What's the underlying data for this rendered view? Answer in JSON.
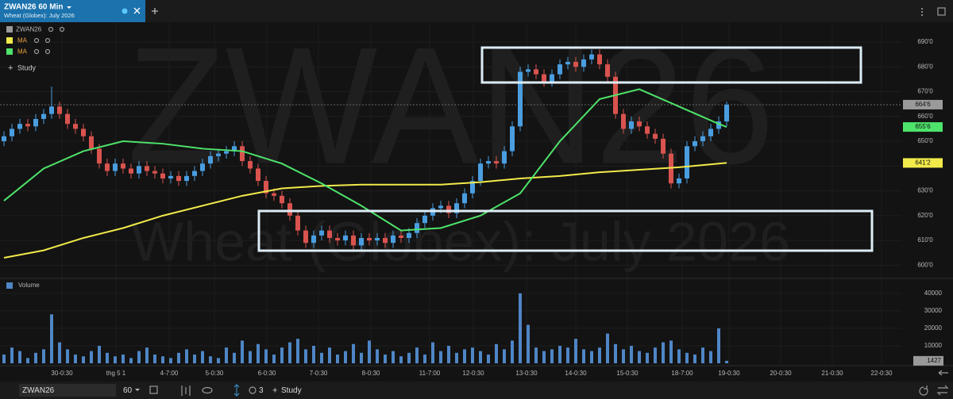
{
  "tab": {
    "title": "ZWAN26 60 Min",
    "subtitle": "Wheat (Globex): July 2026"
  },
  "watermark": {
    "symbol": "ZWAN26",
    "description": "Wheat (Globex): July 2026"
  },
  "study_button": "Study",
  "chart_data": {
    "type": "candlestick",
    "name": "ZWAN26",
    "up_color": "#4a9ee0",
    "down_color": "#d9534f",
    "open": [
      650,
      652,
      655,
      657,
      656,
      659,
      661,
      664,
      661,
      657,
      655,
      652,
      647,
      641,
      638,
      641,
      639,
      637,
      640,
      638,
      637,
      635,
      636,
      634,
      636,
      638,
      641,
      644,
      645,
      646,
      648,
      642,
      639,
      634,
      629,
      628,
      625,
      620,
      614,
      609,
      612,
      614,
      611,
      610,
      612,
      608,
      611,
      610,
      611,
      609,
      612,
      611,
      613,
      617,
      620,
      623,
      624,
      621,
      625,
      629,
      634,
      641,
      642,
      641,
      646,
      656,
      678,
      679,
      677,
      674,
      677,
      681,
      682,
      680,
      683,
      685,
      681,
      676,
      661,
      655,
      658,
      656,
      653,
      651,
      645,
      633,
      635,
      648,
      650,
      652,
      655,
      658
    ],
    "high": [
      654,
      657,
      659,
      659,
      661,
      663,
      672,
      666,
      663,
      659,
      657,
      654,
      649,
      643,
      643,
      643,
      641,
      642,
      642,
      640,
      639,
      638,
      638,
      638,
      640,
      643,
      646,
      647,
      648,
      650,
      650,
      644,
      641,
      636,
      631,
      630,
      627,
      622,
      616,
      614,
      616,
      616,
      613,
      614,
      614,
      613,
      613,
      613,
      613,
      614,
      614,
      615,
      619,
      622,
      625,
      626,
      626,
      627,
      631,
      636,
      643,
      644,
      644,
      648,
      658,
      680,
      681,
      681,
      679,
      679,
      683,
      684,
      684,
      685,
      687,
      687,
      683,
      678,
      663,
      660,
      660,
      658,
      655,
      653,
      647,
      637,
      650,
      652,
      654,
      657,
      660,
      666
    ],
    "low": [
      648,
      650,
      653,
      654,
      654,
      657,
      659,
      659,
      655,
      653,
      650,
      645,
      639,
      636,
      636,
      637,
      635,
      635,
      636,
      635,
      633,
      633,
      632,
      632,
      634,
      636,
      639,
      642,
      643,
      644,
      640,
      637,
      632,
      627,
      626,
      623,
      618,
      612,
      607,
      607,
      610,
      609,
      608,
      608,
      606,
      606,
      608,
      608,
      607,
      607,
      609,
      609,
      611,
      615,
      618,
      621,
      619,
      619,
      623,
      627,
      632,
      639,
      639,
      639,
      644,
      654,
      676,
      675,
      672,
      672,
      675,
      679,
      678,
      678,
      681,
      679,
      674,
      659,
      653,
      653,
      654,
      651,
      649,
      643,
      631,
      631,
      633,
      646,
      648,
      650,
      653,
      656
    ],
    "close": [
      652,
      655,
      657,
      656,
      659,
      661,
      664,
      661,
      657,
      655,
      652,
      647,
      641,
      638,
      641,
      639,
      637,
      640,
      638,
      637,
      635,
      636,
      634,
      636,
      638,
      641,
      644,
      645,
      646,
      648,
      642,
      639,
      634,
      629,
      628,
      625,
      620,
      614,
      609,
      612,
      614,
      611,
      610,
      612,
      608,
      611,
      610,
      611,
      609,
      612,
      611,
      613,
      617,
      620,
      623,
      624,
      621,
      625,
      629,
      634,
      641,
      642,
      641,
      646,
      656,
      678,
      679,
      677,
      674,
      677,
      681,
      682,
      680,
      683,
      685,
      681,
      676,
      661,
      655,
      658,
      656,
      653,
      651,
      645,
      633,
      635,
      648,
      650,
      652,
      655,
      658,
      664.75
    ],
    "last_color": "#9a9a9a",
    "last_label": {
      "value": 664.75,
      "label": "664'6"
    },
    "series": [
      {
        "name": "MA",
        "color": "#f2ea4a",
        "x": [
          0,
          5,
          10,
          15,
          20,
          25,
          30,
          35,
          40,
          45,
          50,
          55,
          60,
          65,
          70,
          75,
          80,
          85,
          90,
          91
        ],
        "values": [
          603,
          606,
          611,
          615,
          620,
          624,
          628,
          631,
          632,
          632.5,
          632.5,
          632.5,
          633.5,
          635,
          636,
          637.5,
          638.5,
          639.5,
          641,
          641.25
        ],
        "last_label": {
          "value": 641.25,
          "label": "641'2"
        }
      },
      {
        "name": "MA",
        "color": "#4ee36b",
        "x": [
          0,
          5,
          10,
          15,
          20,
          25,
          30,
          35,
          40,
          45,
          50,
          55,
          60,
          65,
          70,
          75,
          80,
          85,
          90,
          91
        ],
        "values": [
          626,
          639,
          646,
          650,
          649,
          647,
          646,
          641,
          633,
          624,
          614,
          615,
          620,
          629,
          650,
          667,
          671,
          664,
          657,
          655.75
        ],
        "last_label": {
          "value": 655.75,
          "label": "655'6"
        }
      }
    ],
    "xlim": [
      -0.5,
      113
    ],
    "xticks": [
      {
        "value": 7.3,
        "label": "30-0:30"
      },
      {
        "value": 14.1,
        "label": "thg 5 1"
      },
      {
        "value": 20.8,
        "label": "4-7:00"
      },
      {
        "value": 26.5,
        "label": "5-0:30"
      },
      {
        "value": 33.1,
        "label": "6-0:30"
      },
      {
        "value": 39.6,
        "label": "7-0:30"
      },
      {
        "value": 46.2,
        "label": "8-0:30"
      },
      {
        "value": 53.6,
        "label": "11-7:00"
      },
      {
        "value": 59.1,
        "label": "12-0:30"
      },
      {
        "value": 65.8,
        "label": "13-0:30"
      },
      {
        "value": 72,
        "label": "14-0:30"
      },
      {
        "value": 78.5,
        "label": "15-0:30"
      },
      {
        "value": 85.4,
        "label": "18-7:00"
      },
      {
        "value": 91.3,
        "label": "19-0:30"
      },
      {
        "value": 97.8,
        "label": "20-0:30"
      },
      {
        "value": 104.3,
        "label": "21-0:30"
      },
      {
        "value": 110.5,
        "label": "22-0:30"
      }
    ],
    "ylim": [
      595,
      698
    ],
    "yticks": [
      {
        "value": 600,
        "label": "600'0"
      },
      {
        "value": 610,
        "label": "610'0"
      },
      {
        "value": 620,
        "label": "620'0"
      },
      {
        "value": 630,
        "label": "630'0"
      },
      {
        "value": 640,
        "label": "640'0"
      },
      {
        "value": 650,
        "label": "650'0"
      },
      {
        "value": 660,
        "label": "660'0"
      },
      {
        "value": 670,
        "label": "670'0"
      },
      {
        "value": 680,
        "label": "680'0"
      },
      {
        "value": 690,
        "label": "690'0"
      }
    ],
    "grid": true,
    "volume": {
      "title": "Volume",
      "color": "#4f86c6",
      "last_color": "#9a9a9a",
      "values": [
        5000,
        9000,
        7000,
        3000,
        6000,
        8000,
        28000,
        12000,
        8000,
        5000,
        4000,
        7000,
        10000,
        6000,
        4000,
        5000,
        3000,
        7000,
        9000,
        5000,
        4000,
        3000,
        6000,
        8000,
        5000,
        7000,
        4000,
        3000,
        9000,
        6000,
        13000,
        7000,
        11000,
        8000,
        5000,
        9000,
        12000,
        14000,
        8000,
        10000,
        6000,
        9000,
        5000,
        7000,
        11000,
        6000,
        13000,
        8000,
        5000,
        7000,
        4000,
        6000,
        9000,
        5000,
        12000,
        7000,
        10000,
        6000,
        8000,
        9000,
        7000,
        5000,
        11000,
        8000,
        13000,
        40000,
        22000,
        9000,
        7000,
        8000,
        10000,
        9000,
        14000,
        8000,
        7000,
        9000,
        17000,
        11000,
        8000,
        10000,
        7000,
        6000,
        9000,
        12000,
        13000,
        8000,
        6000,
        5000,
        9000,
        7000,
        20000,
        1427
      ],
      "ylim": [
        0,
        44000
      ],
      "yticks": [
        10000,
        20000,
        30000,
        40000
      ]
    }
  },
  "toolbar": {
    "symbol": "ZWAN26",
    "interval": "60",
    "studies_count": "3",
    "study_button": "Study"
  }
}
